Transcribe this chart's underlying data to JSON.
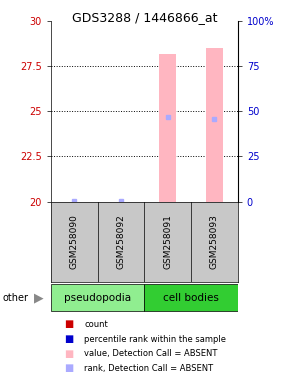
{
  "title": "GDS3288 / 1446866_at",
  "samples": [
    "GSM258090",
    "GSM258092",
    "GSM258091",
    "GSM258093"
  ],
  "groups": [
    "pseudopodia",
    "pseudopodia",
    "cell bodies",
    "cell bodies"
  ],
  "group_colors": {
    "pseudopodia": "#90EE90",
    "cell bodies": "#32CD32"
  },
  "ylim": [
    20,
    30
  ],
  "yticks_left": [
    20,
    22.5,
    25,
    27.5,
    30
  ],
  "yticks_right": [
    0,
    25,
    50,
    75,
    100
  ],
  "ylabel_left_color": "#CC0000",
  "ylabel_right_color": "#0000CC",
  "rank_values": [
    0.5,
    0.5,
    47,
    46
  ],
  "value_absent": [
    null,
    null,
    28.2,
    28.5
  ],
  "pink_bar_color": "#FFB6C1",
  "light_blue_color": "#AAAAFF",
  "other_label": "other",
  "bg_color": "#FFFFFF",
  "legend_colors": [
    "#CC0000",
    "#0000CC",
    "#FFB6C1",
    "#AAAAFF"
  ],
  "legend_labels": [
    "count",
    "percentile rank within the sample",
    "value, Detection Call = ABSENT",
    "rank, Detection Call = ABSENT"
  ]
}
